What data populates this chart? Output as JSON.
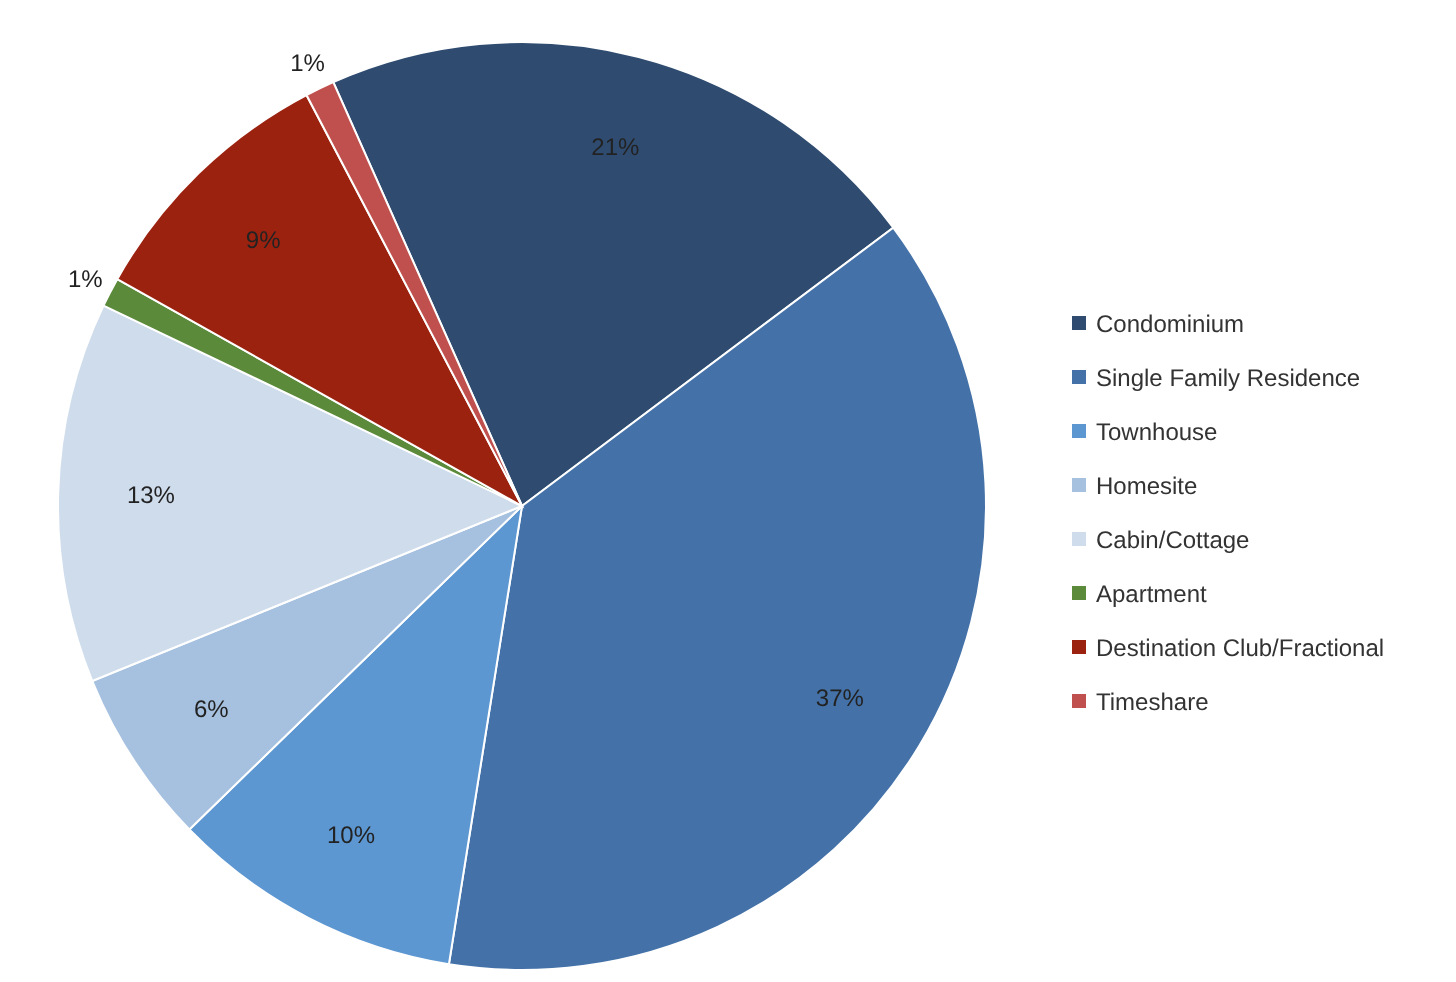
{
  "chart_data": {
    "type": "pie",
    "categories": [
      "Condominium",
      "Single Family Residence",
      "Townhouse",
      "Homesite",
      "Cabin/Cottage",
      "Apartment",
      "Destination Club/Fractional",
      "Timeshare"
    ],
    "values": [
      21,
      37,
      10,
      6,
      13,
      1,
      9,
      1
    ],
    "colors": [
      "#2f4c70",
      "#4472a8",
      "#5d97d2",
      "#a6c1e0",
      "#cfdcec",
      "#5b8a3a",
      "#9c2210",
      "#c0504d"
    ],
    "value_labels": [
      "21%",
      "37%",
      "10%",
      "6%",
      "13%",
      "1%",
      "9%",
      "1%"
    ],
    "legend": "right"
  }
}
